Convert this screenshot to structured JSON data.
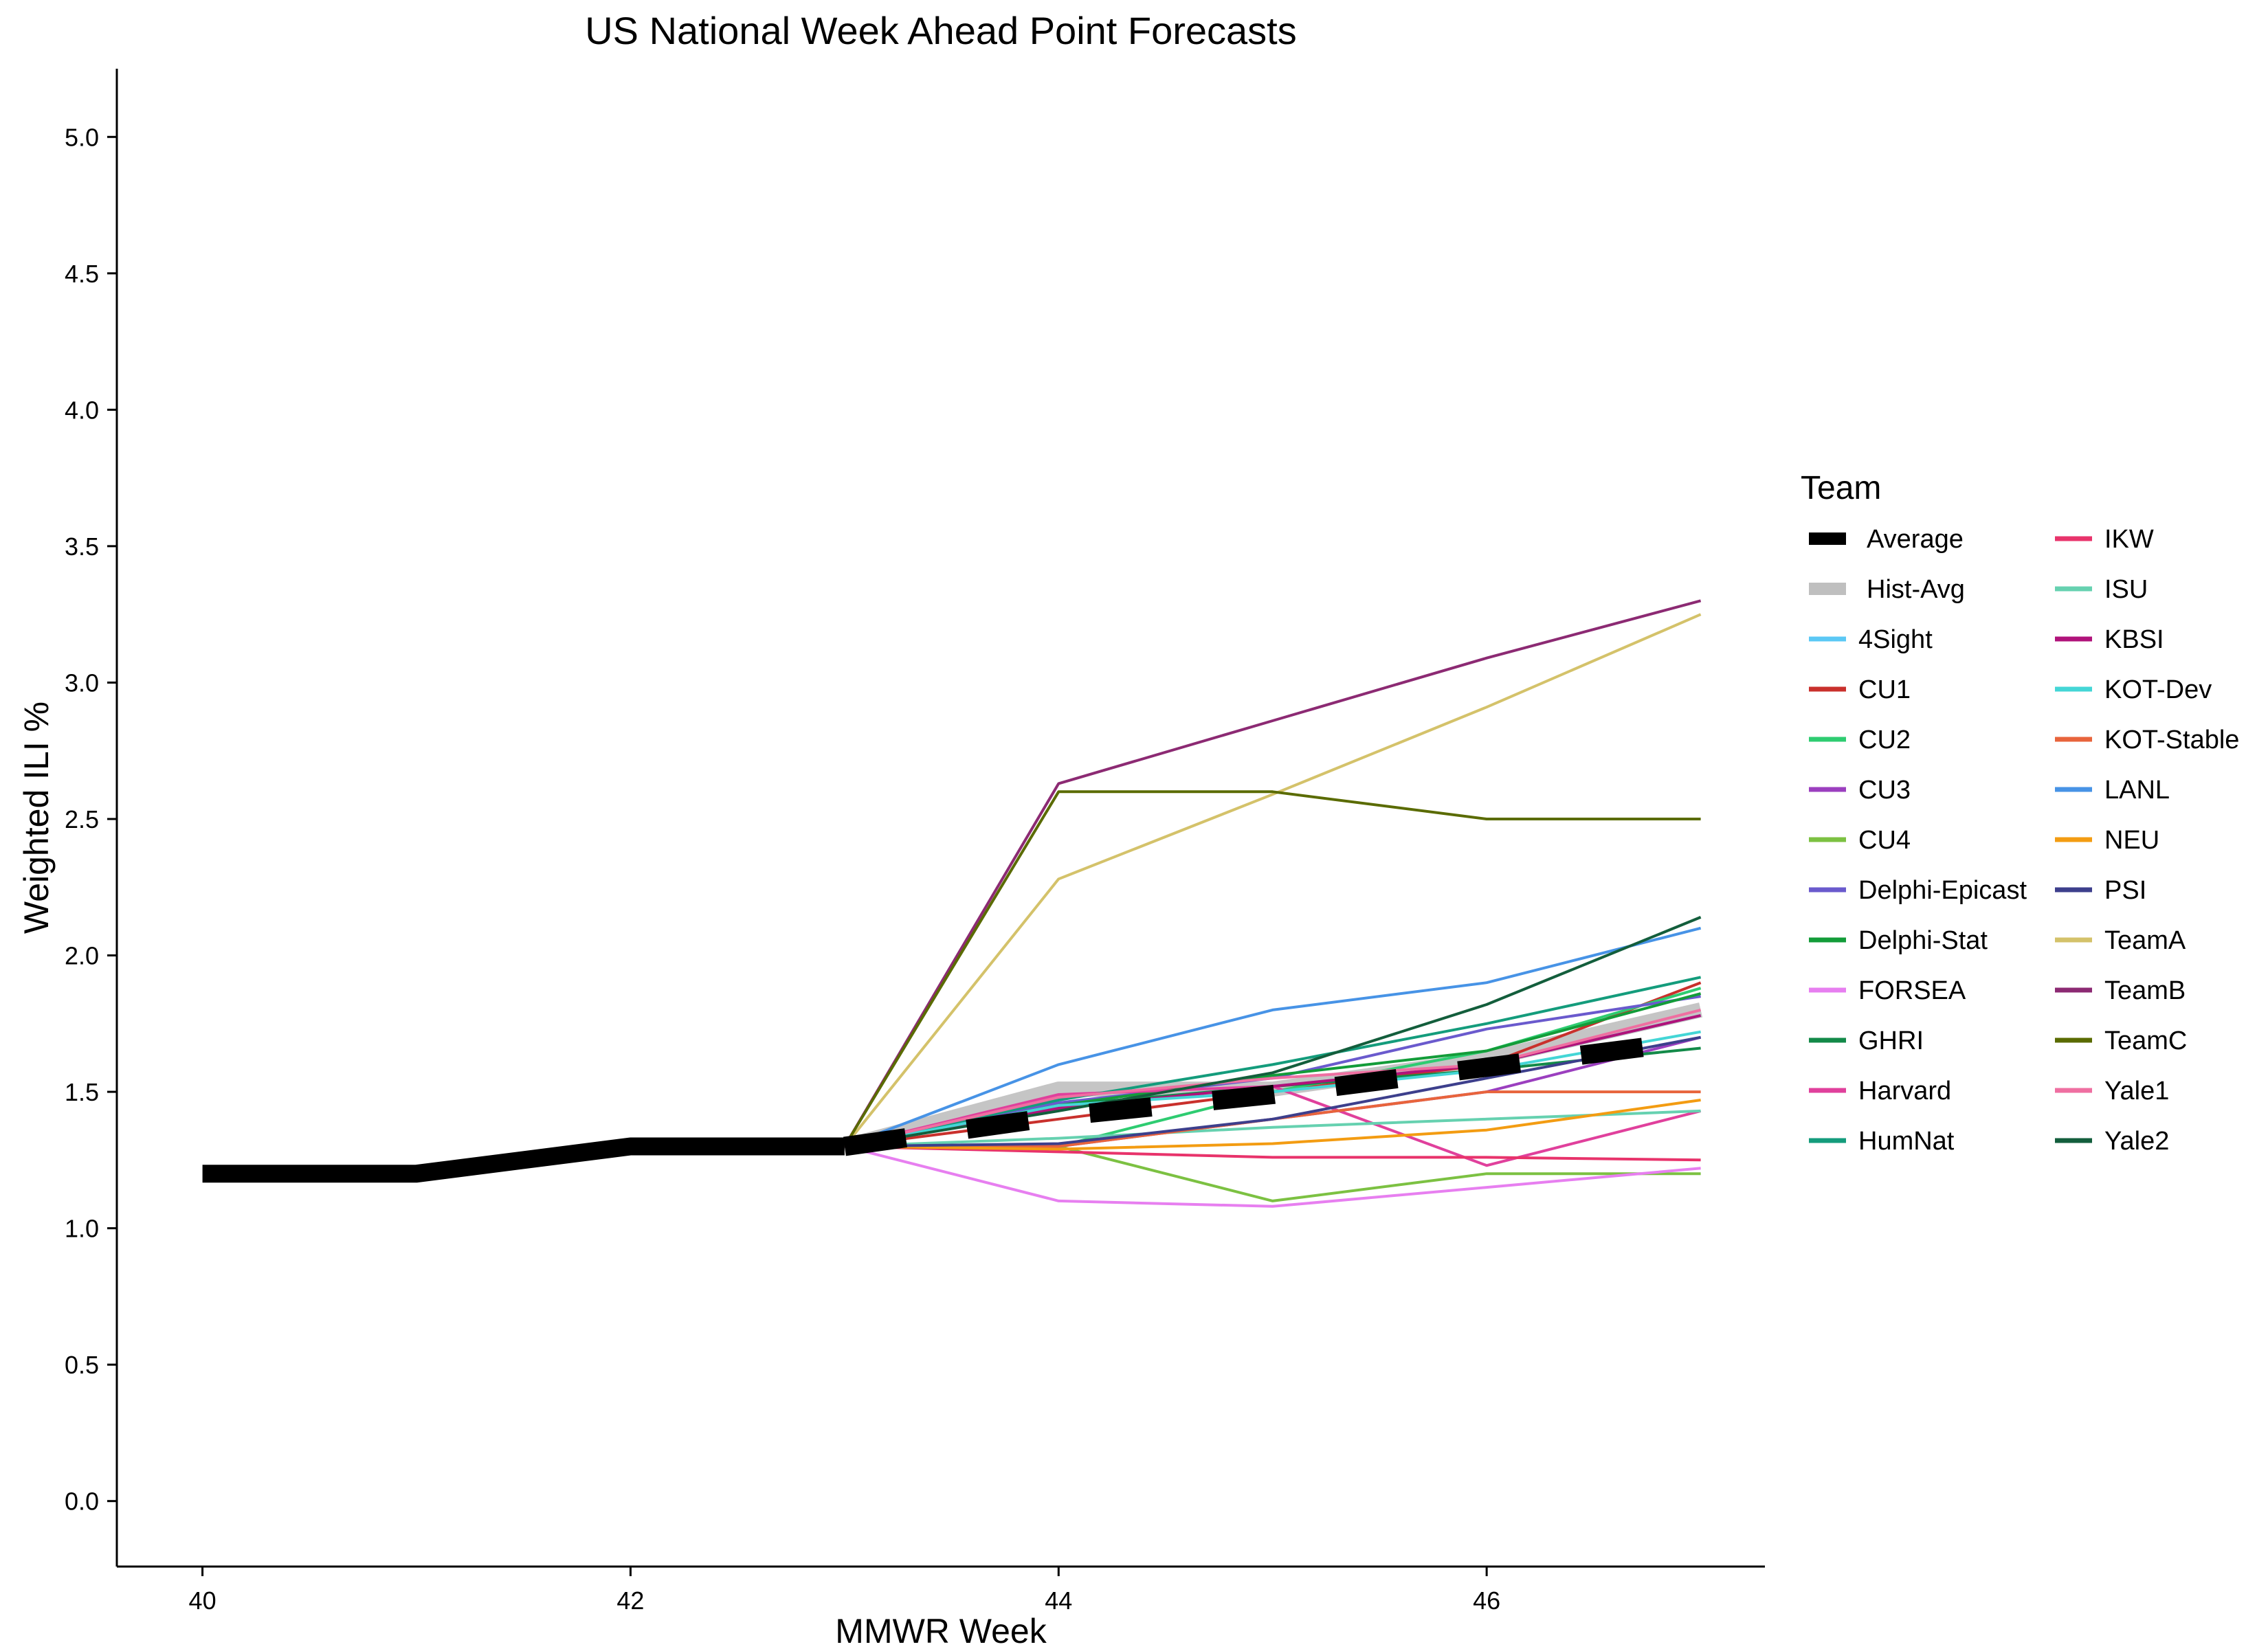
{
  "chart_data": {
    "type": "line",
    "title": "US National Week Ahead Point Forecasts",
    "xlabel": "MMWR Week",
    "ylabel": "Weighted ILI %",
    "xlim": [
      39.6,
      47.3
    ],
    "ylim": [
      -0.24,
      5.25
    ],
    "xticks": [
      40,
      42,
      44,
      46
    ],
    "yticks": [
      0.0,
      0.5,
      1.0,
      1.5,
      2.0,
      2.5,
      3.0,
      3.5,
      4.0,
      4.5,
      5.0
    ],
    "ytick_labels": [
      "0.0",
      "0.5",
      "1.0",
      "1.5",
      "2.0",
      "2.5",
      "3.0",
      "3.5",
      "4.0",
      "4.5",
      "5.0"
    ],
    "grid": false,
    "legend": {
      "title": "Team",
      "placement": "right"
    },
    "observed": {
      "name": "Average",
      "color": "#000000",
      "x": [
        40,
        41,
        42,
        43
      ],
      "y": [
        1.2,
        1.2,
        1.3,
        1.3
      ]
    },
    "series": [
      {
        "name": "Average",
        "color": "#000000",
        "style": "dashed-thick",
        "x": [
          43,
          44,
          45,
          46,
          47
        ],
        "y": [
          1.3,
          1.41,
          1.49,
          1.59,
          1.69
        ]
      },
      {
        "name": "Hist-Avg",
        "color": "#bfbfbf",
        "style": "thick",
        "x": [
          43,
          44,
          45,
          46,
          47
        ],
        "y": [
          1.3,
          1.51,
          1.51,
          1.62,
          1.8
        ]
      },
      {
        "name": "4Sight",
        "color": "#5bc8f5",
        "x": [
          43,
          44,
          45,
          46,
          47
        ],
        "y": [
          1.3,
          1.45,
          1.52,
          1.6,
          1.78
        ]
      },
      {
        "name": "CU1",
        "color": "#c9302c",
        "x": [
          43,
          44,
          45,
          46,
          47
        ],
        "y": [
          1.3,
          1.4,
          1.5,
          1.6,
          1.9
        ]
      },
      {
        "name": "CU2",
        "color": "#2ecc71",
        "x": [
          43,
          44,
          45,
          46,
          47
        ],
        "y": [
          1.3,
          1.3,
          1.5,
          1.65,
          1.88
        ]
      },
      {
        "name": "CU3",
        "color": "#9b3fbf",
        "x": [
          43,
          44,
          45,
          46,
          47
        ],
        "y": [
          1.3,
          1.3,
          1.4,
          1.5,
          1.7
        ]
      },
      {
        "name": "CU4",
        "color": "#7cc142",
        "x": [
          43,
          44,
          45,
          46,
          47
        ],
        "y": [
          1.3,
          1.3,
          1.1,
          1.2,
          1.2
        ]
      },
      {
        "name": "Delphi-Epicast",
        "color": "#6a5acd",
        "x": [
          43,
          44,
          45,
          46,
          47
        ],
        "y": [
          1.3,
          1.46,
          1.55,
          1.73,
          1.85
        ]
      },
      {
        "name": "Delphi-Stat",
        "color": "#139c39",
        "x": [
          43,
          44,
          45,
          46,
          47
        ],
        "y": [
          1.3,
          1.45,
          1.56,
          1.65,
          1.86
        ]
      },
      {
        "name": "FORSEA",
        "color": "#e77ff0",
        "x": [
          43,
          44,
          45,
          46,
          47
        ],
        "y": [
          1.3,
          1.1,
          1.08,
          1.15,
          1.22
        ]
      },
      {
        "name": "GHRI",
        "color": "#138a49",
        "x": [
          43,
          44,
          45,
          46,
          47
        ],
        "y": [
          1.3,
          1.45,
          1.52,
          1.58,
          1.66
        ]
      },
      {
        "name": "Harvard",
        "color": "#e0409c",
        "x": [
          43,
          44,
          45,
          46,
          47
        ],
        "y": [
          1.3,
          1.49,
          1.52,
          1.23,
          1.43
        ]
      },
      {
        "name": "HumNat",
        "color": "#149c7c",
        "x": [
          43,
          44,
          45,
          46,
          47
        ],
        "y": [
          1.3,
          1.47,
          1.6,
          1.75,
          1.92
        ]
      },
      {
        "name": "IKW",
        "color": "#e8336b",
        "x": [
          43,
          44,
          45,
          46,
          47
        ],
        "y": [
          1.3,
          1.28,
          1.26,
          1.26,
          1.25
        ]
      },
      {
        "name": "ISU",
        "color": "#66d1b0",
        "x": [
          43,
          44,
          45,
          46,
          47
        ],
        "y": [
          1.3,
          1.33,
          1.37,
          1.4,
          1.43
        ]
      },
      {
        "name": "KBSI",
        "color": "#b0127a",
        "x": [
          43,
          44,
          45,
          46,
          47
        ],
        "y": [
          1.3,
          1.44,
          1.52,
          1.6,
          1.78
        ]
      },
      {
        "name": "KOT-Dev",
        "color": "#44d6d6",
        "x": [
          43,
          44,
          45,
          46,
          47
        ],
        "y": [
          1.3,
          1.45,
          1.5,
          1.58,
          1.72
        ]
      },
      {
        "name": "KOT-Stable",
        "color": "#e8643c",
        "x": [
          43,
          44,
          45,
          46,
          47
        ],
        "y": [
          1.3,
          1.3,
          1.4,
          1.5,
          1.5
        ]
      },
      {
        "name": "LANL",
        "color": "#4793e6",
        "x": [
          43,
          44,
          45,
          46,
          47
        ],
        "y": [
          1.3,
          1.6,
          1.8,
          1.9,
          2.1
        ]
      },
      {
        "name": "NEU",
        "color": "#f39c12",
        "x": [
          43,
          44,
          45,
          46,
          47
        ],
        "y": [
          1.3,
          1.29,
          1.31,
          1.36,
          1.47
        ]
      },
      {
        "name": "PSI",
        "color": "#3d3f8c",
        "x": [
          43,
          44,
          45,
          46,
          47
        ],
        "y": [
          1.3,
          1.31,
          1.4,
          1.55,
          1.7
        ]
      },
      {
        "name": "TeamA",
        "color": "#d4c26a",
        "x": [
          43,
          44,
          45,
          46,
          47
        ],
        "y": [
          1.3,
          2.28,
          2.59,
          2.91,
          3.25
        ]
      },
      {
        "name": "TeamB",
        "color": "#8c2a73",
        "x": [
          43,
          44,
          45,
          46,
          47
        ],
        "y": [
          1.3,
          2.63,
          2.86,
          3.09,
          3.3
        ]
      },
      {
        "name": "TeamC",
        "color": "#5a6b00",
        "x": [
          43,
          44,
          45,
          46,
          47
        ],
        "y": [
          1.3,
          2.6,
          2.6,
          2.5,
          2.5
        ]
      },
      {
        "name": "Yale1",
        "color": "#ef6fa1",
        "x": [
          43,
          44,
          45,
          46,
          47
        ],
        "y": [
          1.3,
          1.48,
          1.55,
          1.6,
          1.8
        ]
      },
      {
        "name": "Yale2",
        "color": "#135e3c",
        "x": [
          43,
          44,
          45,
          46,
          47
        ],
        "y": [
          1.3,
          1.43,
          1.57,
          1.82,
          2.14
        ]
      }
    ]
  }
}
